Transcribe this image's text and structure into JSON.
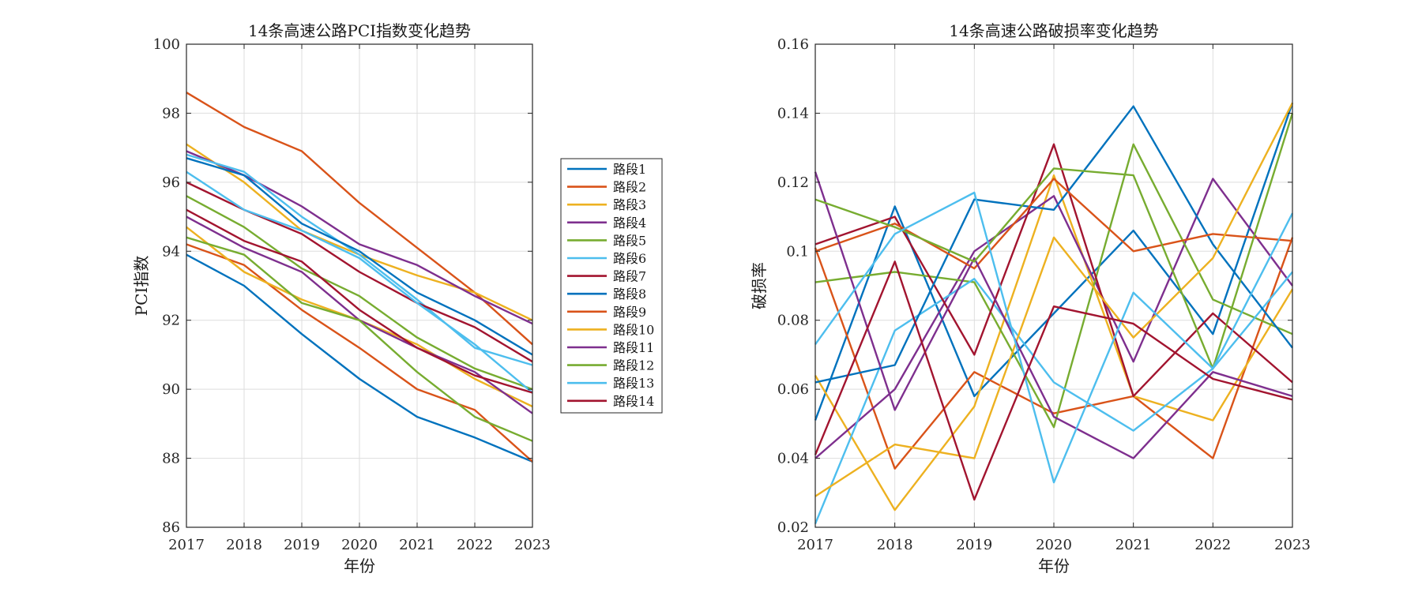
{
  "chart_data": [
    {
      "type": "line",
      "title": "14条高速公路PCI指数变化趋势",
      "xlabel": "年份",
      "ylabel": "PCI指数",
      "x": [
        2017,
        2018,
        2019,
        2020,
        2021,
        2022,
        2023
      ],
      "xlim": [
        2017,
        2023
      ],
      "ylim": [
        86,
        100
      ],
      "yticks": [
        86,
        88,
        90,
        92,
        94,
        96,
        98,
        100
      ],
      "ytick_labels": [
        "86",
        "88",
        "90",
        "92",
        "94",
        "96",
        "98",
        "100"
      ],
      "grid": true,
      "legend": "right-outside",
      "series": [
        {
          "name": "路段1",
          "values": [
            93.9,
            93.0,
            91.6,
            90.3,
            89.2,
            88.6,
            87.9
          ]
        },
        {
          "name": "路段2",
          "values": [
            98.6,
            97.6,
            96.9,
            95.4,
            94.1,
            92.8,
            91.3
          ]
        },
        {
          "name": "路段3",
          "values": [
            97.1,
            96.0,
            94.6,
            93.9,
            93.3,
            92.8,
            92.0
          ]
        },
        {
          "name": "路段4",
          "values": [
            96.9,
            96.2,
            95.3,
            94.2,
            93.6,
            92.7,
            91.9
          ]
        },
        {
          "name": "路段5",
          "values": [
            95.6,
            94.7,
            93.5,
            92.7,
            91.5,
            90.6,
            90.0
          ]
        },
        {
          "name": "路段6",
          "values": [
            96.8,
            96.3,
            95.0,
            93.9,
            92.6,
            91.2,
            90.7
          ]
        },
        {
          "name": "路段7",
          "values": [
            96.0,
            95.2,
            94.5,
            93.4,
            92.5,
            91.8,
            90.8
          ]
        },
        {
          "name": "路段8",
          "values": [
            96.7,
            96.2,
            94.8,
            94.0,
            92.8,
            92.0,
            91.0
          ]
        },
        {
          "name": "路段9",
          "values": [
            94.2,
            93.6,
            92.3,
            91.2,
            90.0,
            89.4,
            87.9
          ]
        },
        {
          "name": "路段10",
          "values": [
            94.7,
            93.4,
            92.6,
            92.0,
            91.3,
            90.3,
            89.5
          ]
        },
        {
          "name": "路段11",
          "values": [
            95.0,
            94.1,
            93.4,
            92.0,
            91.2,
            90.5,
            89.3
          ]
        },
        {
          "name": "路段12",
          "values": [
            94.4,
            93.9,
            92.5,
            92.0,
            90.5,
            89.2,
            88.5
          ]
        },
        {
          "name": "路段13",
          "values": [
            96.3,
            95.2,
            94.6,
            93.8,
            92.5,
            91.3,
            89.9
          ]
        },
        {
          "name": "路段14",
          "values": [
            95.2,
            94.3,
            93.7,
            92.3,
            91.2,
            90.4,
            89.9
          ]
        }
      ]
    },
    {
      "type": "line",
      "title": "14条高速公路破损率变化趋势",
      "xlabel": "年份",
      "ylabel": "破损率",
      "x": [
        2017,
        2018,
        2019,
        2020,
        2021,
        2022,
        2023
      ],
      "xlim": [
        2017,
        2023
      ],
      "ylim": [
        0.02,
        0.16
      ],
      "yticks": [
        0.02,
        0.04,
        0.06,
        0.08,
        0.1,
        0.12,
        0.14,
        0.16
      ],
      "ytick_labels": [
        "0.02",
        "0.04",
        "0.06",
        "0.08",
        "0.1",
        "0.12",
        "0.14",
        "0.16"
      ],
      "grid": true,
      "series": [
        {
          "name": "路段1",
          "values": [
            0.051,
            0.113,
            0.058,
            0.082,
            0.106,
            0.076,
            0.143
          ]
        },
        {
          "name": "路段2",
          "values": [
            0.101,
            0.037,
            0.065,
            0.053,
            0.058,
            0.04,
            0.104
          ]
        },
        {
          "name": "路段3",
          "values": [
            0.064,
            0.025,
            0.055,
            0.122,
            0.058,
            0.051,
            0.089
          ]
        },
        {
          "name": "路段4",
          "values": [
            0.04,
            0.06,
            0.1,
            0.116,
            0.068,
            0.121,
            0.09
          ]
        },
        {
          "name": "路段5",
          "values": [
            0.091,
            0.094,
            0.091,
            0.049,
            0.131,
            0.086,
            0.076
          ]
        },
        {
          "name": "路段6",
          "values": [
            0.021,
            0.077,
            0.092,
            0.062,
            0.048,
            0.066,
            0.094
          ]
        },
        {
          "name": "路段7",
          "values": [
            0.102,
            0.11,
            0.07,
            0.131,
            0.058,
            0.082,
            0.062
          ]
        },
        {
          "name": "路段8",
          "values": [
            0.062,
            0.067,
            0.115,
            0.112,
            0.142,
            0.102,
            0.072
          ]
        },
        {
          "name": "路段9",
          "values": [
            0.1,
            0.108,
            0.095,
            0.121,
            0.1,
            0.105,
            0.103
          ]
        },
        {
          "name": "路段10",
          "values": [
            0.029,
            0.044,
            0.04,
            0.104,
            0.075,
            0.098,
            0.143
          ]
        },
        {
          "name": "路段11",
          "values": [
            0.123,
            0.054,
            0.098,
            0.052,
            0.04,
            0.065,
            0.058
          ]
        },
        {
          "name": "路段12",
          "values": [
            0.115,
            0.107,
            0.097,
            0.124,
            0.122,
            0.066,
            0.14
          ]
        },
        {
          "name": "路段13",
          "values": [
            0.073,
            0.105,
            0.117,
            0.033,
            0.088,
            0.066,
            0.111
          ]
        },
        {
          "name": "路段14",
          "values": [
            0.041,
            0.097,
            0.028,
            0.084,
            0.079,
            0.063,
            0.057
          ]
        }
      ]
    }
  ],
  "colors": [
    "#0072BD",
    "#D95319",
    "#EDB120",
    "#7E2F8E",
    "#77AC30",
    "#4DBEEE",
    "#A2142F",
    "#0072BD",
    "#D95319",
    "#EDB120",
    "#7E2F8E",
    "#77AC30",
    "#4DBEEE",
    "#A2142F"
  ]
}
